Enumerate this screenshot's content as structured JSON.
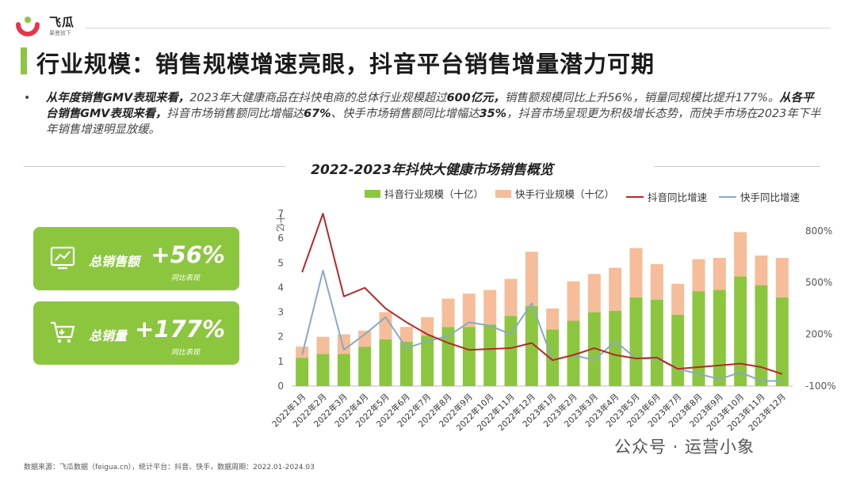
{
  "brand": {
    "name": "飞瓜",
    "tagline": "果曼放下"
  },
  "page_title": "行业规模：销售规模增速亮眼，抖音平台销售增量潜力可期",
  "summary": {
    "s1_bold": "从年度销售GMV表现来看，",
    "s1": "2023年大健康商品在抖快电商的总体行业规模超过",
    "s1_val": "600亿元，",
    "s1b": "销售额规模同比上升56%，销量同规模比提升177%。",
    "s2_bold": "从各平台销售GMV表现来看，",
    "s2": "抖音市场销售额同比增幅达",
    "s2_val1": "67%",
    "s2b": "、快手市场销售额同比增幅达",
    "s2_val2": "35%",
    "s2c": "，抖音市场呈现更为积极增长态势，而快手市场在2023年下半年销售增速明显放缓。"
  },
  "kpis": [
    {
      "label": "总销售额",
      "value": "+56%",
      "note": "同比表现",
      "icon": "chart-screen-icon"
    },
    {
      "label": "总销量",
      "value": "+177%",
      "note": "同比表现",
      "icon": "shopping-cart-icon"
    }
  ],
  "colors": {
    "green": "#8cc63f",
    "peach": "#f5bd99",
    "dy_line": "#b52a2a",
    "ks_line": "#8aa9c0"
  },
  "chart_data": {
    "type": "bar",
    "title": "2022-2023年抖快大健康市场销售概览",
    "ylabel": "十亿",
    "ylim": [
      0,
      7
    ],
    "y_ticks": [
      0,
      1,
      2,
      3,
      4,
      5,
      6,
      7
    ],
    "y2lim": [
      -100,
      900
    ],
    "y2_ticks": [
      "800%",
      "500%",
      "200%",
      "-100%"
    ],
    "y2_tick_values": [
      800,
      500,
      200,
      -100
    ],
    "stacked": true,
    "legend_position": "top",
    "categories": [
      "2022年1月",
      "2022年2月",
      "2022年3月",
      "2022年4月",
      "2022年5月",
      "2022年6月",
      "2022年7月",
      "2022年8月",
      "2022年9月",
      "2022年10月",
      "2022年11月",
      "2022年12月",
      "2023年1月",
      "2023年2月",
      "2023年3月",
      "2023年4月",
      "2023年5月",
      "2023年6月",
      "2023年7月",
      "2023年8月",
      "2023年9月",
      "2023年10月",
      "2023年11月",
      "2023年12月"
    ],
    "series": [
      {
        "name": "抖音行业规模（十亿）",
        "type": "bar",
        "axis": "left",
        "values": [
          1.15,
          1.3,
          1.3,
          1.6,
          1.9,
          1.8,
          2.05,
          2.4,
          2.4,
          2.5,
          2.85,
          3.25,
          2.3,
          2.65,
          3.0,
          3.05,
          3.6,
          3.5,
          2.9,
          3.85,
          3.9,
          4.45,
          4.1,
          3.6
        ]
      },
      {
        "name": "快手行业规模（十亿）",
        "type": "bar",
        "axis": "left",
        "values": [
          0.45,
          0.7,
          0.8,
          0.65,
          1.1,
          0.6,
          0.75,
          1.15,
          1.35,
          1.4,
          1.5,
          2.2,
          0.85,
          1.6,
          1.55,
          1.75,
          2.0,
          1.45,
          1.25,
          1.3,
          1.3,
          1.8,
          1.2,
          1.6
        ]
      },
      {
        "name": "抖音同比增速",
        "type": "line",
        "axis": "right",
        "values": [
          560,
          900,
          420,
          470,
          350,
          270,
          200,
          150,
          110,
          115,
          120,
          150,
          50,
          80,
          120,
          80,
          60,
          65,
          0,
          10,
          20,
          30,
          10,
          -30
        ]
      },
      {
        "name": "快手同比增速",
        "type": "line",
        "axis": "right",
        "values": [
          80,
          570,
          110,
          200,
          300,
          120,
          160,
          190,
          270,
          250,
          200,
          380,
          50,
          80,
          50,
          160,
          60,
          60,
          0,
          -30,
          -60,
          -20,
          -70,
          -70
        ]
      }
    ]
  },
  "source": "数据来源：飞瓜数据（feigua.cn），统计平台：抖音、快手，数据周期：2022.01-2024.03",
  "watermark": "公众号 · 运营小象"
}
